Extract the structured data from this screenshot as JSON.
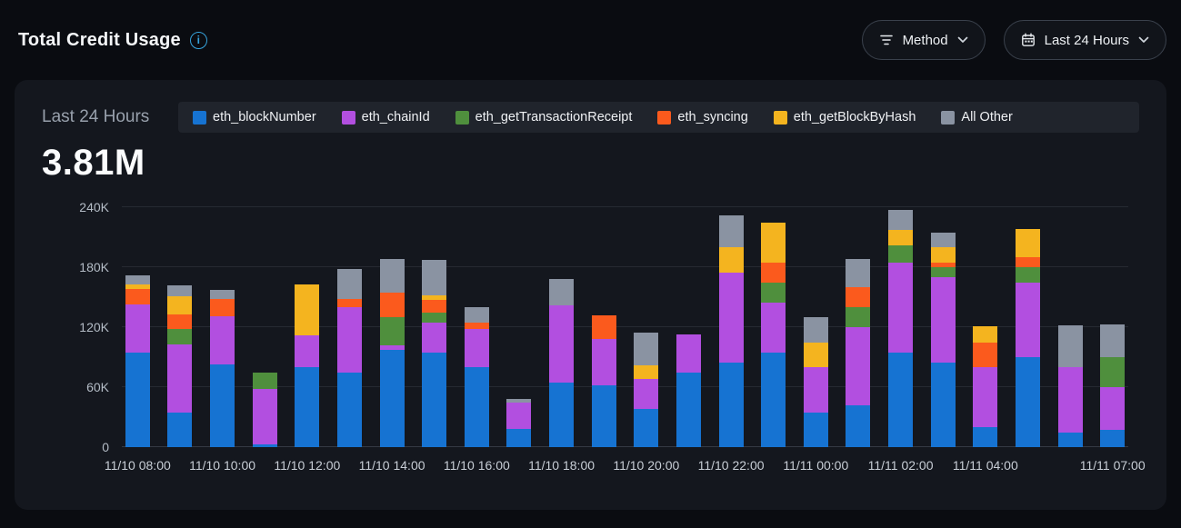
{
  "header": {
    "title": "Total Credit Usage",
    "info_glyph": "i"
  },
  "controls": {
    "method": {
      "label": "Method"
    },
    "time_range": {
      "label": "Last 24 Hours"
    }
  },
  "summary": {
    "range_label": "Last 24 Hours",
    "total": "3.81M"
  },
  "chart_data": {
    "type": "bar",
    "stacked": true,
    "legend_position": "top",
    "grid": "horizontal",
    "values_unit": "K (thousands of credits)",
    "ylim_k": [
      0,
      240
    ],
    "yticks": [
      {
        "value_k": 0,
        "label": "0"
      },
      {
        "value_k": 60,
        "label": "60K"
      },
      {
        "value_k": 120,
        "label": "120K"
      },
      {
        "value_k": 180,
        "label": "180K"
      },
      {
        "value_k": 240,
        "label": "240K"
      }
    ],
    "bar_count": 24,
    "xticks": [
      {
        "bar_index": 0,
        "label": "11/10 08:00"
      },
      {
        "bar_index": 2,
        "label": "11/10 10:00"
      },
      {
        "bar_index": 4,
        "label": "11/10 12:00"
      },
      {
        "bar_index": 6,
        "label": "11/10 14:00"
      },
      {
        "bar_index": 8,
        "label": "11/10 16:00"
      },
      {
        "bar_index": 10,
        "label": "11/10 18:00"
      },
      {
        "bar_index": 12,
        "label": "11/10 20:00"
      },
      {
        "bar_index": 14,
        "label": "11/10 22:00"
      },
      {
        "bar_index": 16,
        "label": "11/11 00:00"
      },
      {
        "bar_index": 18,
        "label": "11/11 02:00"
      },
      {
        "bar_index": 20,
        "label": "11/11 04:00"
      },
      {
        "bar_index": 23,
        "label": "11/11 07:00"
      }
    ],
    "series": [
      {
        "name": "eth_blockNumber",
        "color": "#1673d2",
        "values_k": [
          95,
          35,
          83,
          3,
          80,
          75,
          97,
          95,
          80,
          18,
          65,
          62,
          38,
          75,
          85,
          95,
          35,
          42,
          95,
          85,
          20,
          90,
          15,
          17
        ]
      },
      {
        "name": "eth_chainId",
        "color": "#b24fe0",
        "values_k": [
          48,
          68,
          48,
          55,
          32,
          65,
          5,
          30,
          38,
          27,
          77,
          46,
          30,
          38,
          90,
          50,
          45,
          78,
          90,
          85,
          60,
          75,
          65,
          43
        ]
      },
      {
        "name": "eth_getTransactionReceipt",
        "color": "#4f8f3d",
        "values_k": [
          0,
          15,
          0,
          17,
          0,
          0,
          28,
          10,
          0,
          0,
          0,
          0,
          0,
          0,
          0,
          20,
          0,
          20,
          17,
          10,
          0,
          15,
          0,
          30
        ]
      },
      {
        "name": "eth_syncing",
        "color": "#fb5a1d",
        "values_k": [
          15,
          15,
          17,
          0,
          0,
          8,
          25,
          12,
          7,
          0,
          0,
          24,
          0,
          0,
          0,
          20,
          0,
          20,
          0,
          5,
          25,
          10,
          0,
          0
        ]
      },
      {
        "name": "eth_getBlockByHash",
        "color": "#f4b41f",
        "values_k": [
          5,
          18,
          0,
          0,
          51,
          0,
          0,
          5,
          0,
          0,
          0,
          0,
          14,
          0,
          25,
          40,
          25,
          0,
          15,
          15,
          16,
          28,
          0,
          0
        ]
      },
      {
        "name": "All Other",
        "color": "#8a93a2",
        "values_k": [
          9,
          11,
          9,
          0,
          0,
          30,
          33,
          35,
          15,
          3,
          26,
          0,
          33,
          0,
          32,
          0,
          25,
          28,
          20,
          15,
          0,
          0,
          42,
          33
        ]
      }
    ]
  }
}
